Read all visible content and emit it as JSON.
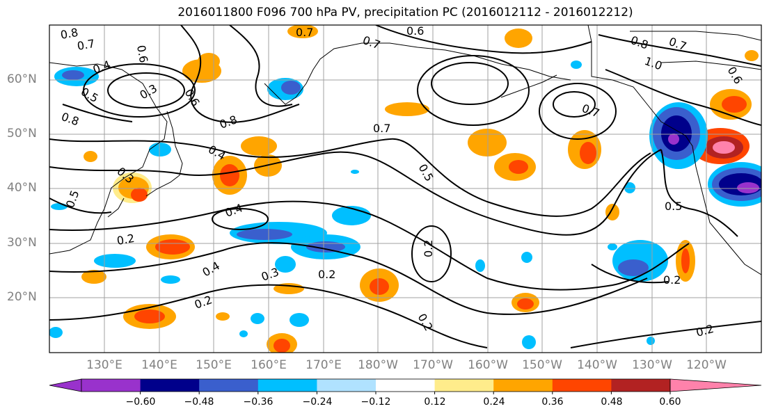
{
  "title": "2016011800 F096 700 hPa PV, precipitation PC (2016012112 - 2016012212)",
  "map": {
    "lat_labels": [
      "60°N",
      "50°N",
      "40°N",
      "30°N",
      "20°N"
    ],
    "lon_labels": [
      "130°E",
      "140°E",
      "150°E",
      "160°E",
      "170°E",
      "180°W",
      "170°W",
      "160°W",
      "150°W",
      "140°W",
      "130°W",
      "120°W"
    ],
    "contour_labels": [
      "0.8",
      "0.7",
      "0.6",
      "0.7",
      "0.7",
      "0.6",
      "0.8",
      "0.7",
      "1.0",
      "0.6",
      "0.4",
      "0.5",
      "0.3",
      "0.8",
      "0.8",
      "0.7",
      "0.6",
      "0.4",
      "0.7",
      "0.5",
      "0.3",
      "0.5",
      "0.4",
      "0.2",
      "0.4",
      "0.3",
      "0.2",
      "0.2",
      "0.2",
      "0.2",
      "0.5",
      "0.2",
      "0.2"
    ],
    "colors": {
      "coast": "#000000",
      "grid": "#a0a0a0",
      "contour": "#000000"
    }
  },
  "colorbar": {
    "ticks": [
      "−0.60",
      "−0.48",
      "−0.36",
      "−0.24",
      "−0.12",
      "0.12",
      "0.24",
      "0.36",
      "0.48",
      "0.60"
    ],
    "colors": [
      "#9932CC",
      "#00008B",
      "#3A5FCD",
      "#00BFFF",
      "#B0E2FF",
      "#FFFFFF",
      "#FFEC8B",
      "#FFA500",
      "#FF4500",
      "#B22222",
      "#FF82AB"
    ]
  }
}
